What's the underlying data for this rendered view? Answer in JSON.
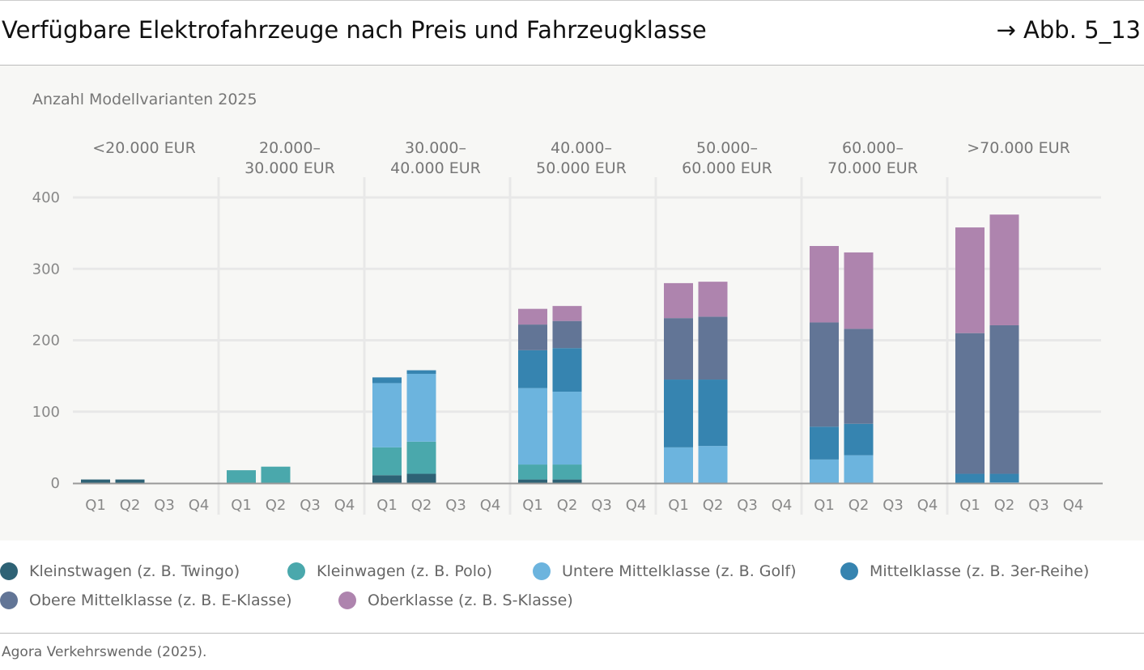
{
  "header": {
    "title": "Verfügbare Elektrofahrzeuge nach Preis und Fahrzeugklasse",
    "figure_ref": "→ Abb. 5_13"
  },
  "source": "Agora Verkehrswende (2025).",
  "chart_data": {
    "type": "bar",
    "stacked": true,
    "ylabel": "Anzahl Modellvarianten 2025",
    "ylim": [
      0,
      400
    ],
    "yticks": [
      0,
      100,
      200,
      300,
      400
    ],
    "grid": true,
    "legend_position": "bottom",
    "groups": [
      [
        "<20.000 EUR"
      ],
      [
        "20.000–",
        "30.000 EUR"
      ],
      [
        "30.000–",
        "40.000 EUR"
      ],
      [
        "40.000–",
        "50.000 EUR"
      ],
      [
        "50.000–",
        "60.000 EUR"
      ],
      [
        "60.000–",
        "70.000 EUR"
      ],
      [
        ">70.000 EUR"
      ]
    ],
    "categories": [
      "Q1",
      "Q2",
      "Q3",
      "Q4"
    ],
    "series": [
      {
        "name": "Kleinstwagen (z. B. Twingo)",
        "color": "#2e6275",
        "values": [
          [
            5,
            5,
            0,
            0
          ],
          [
            0,
            0,
            0,
            0
          ],
          [
            11,
            13,
            0,
            0
          ],
          [
            5,
            5,
            0,
            0
          ],
          [
            0,
            0,
            0,
            0
          ],
          [
            0,
            0,
            0,
            0
          ],
          [
            0,
            0,
            0,
            0
          ]
        ]
      },
      {
        "name": "Kleinwagen (z. B. Polo)",
        "color": "#4aa8ac",
        "values": [
          [
            0,
            0,
            0,
            0
          ],
          [
            18,
            23,
            0,
            0
          ],
          [
            39,
            45,
            0,
            0
          ],
          [
            21,
            21,
            0,
            0
          ],
          [
            0,
            0,
            0,
            0
          ],
          [
            0,
            0,
            0,
            0
          ],
          [
            0,
            0,
            0,
            0
          ]
        ]
      },
      {
        "name": "Untere Mittelklasse (z. B. Golf)",
        "color": "#6cb4de",
        "values": [
          [
            0,
            0,
            0,
            0
          ],
          [
            0,
            0,
            0,
            0
          ],
          [
            90,
            95,
            0,
            0
          ],
          [
            107,
            102,
            0,
            0
          ],
          [
            50,
            52,
            0,
            0
          ],
          [
            33,
            39,
            0,
            0
          ],
          [
            0,
            1,
            0,
            0
          ]
        ]
      },
      {
        "name": "Mittelklasse (z. B. 3er-Reihe)",
        "color": "#3684b0",
        "values": [
          [
            0,
            0,
            0,
            0
          ],
          [
            0,
            0,
            0,
            0
          ],
          [
            8,
            5,
            0,
            0
          ],
          [
            53,
            61,
            0,
            0
          ],
          [
            95,
            93,
            0,
            0
          ],
          [
            46,
            44,
            0,
            0
          ],
          [
            13,
            12,
            0,
            0
          ]
        ]
      },
      {
        "name": "Obere Mittelklasse (z. B. E-Klasse)",
        "color": "#627596",
        "values": [
          [
            0,
            0,
            0,
            0
          ],
          [
            0,
            0,
            0,
            0
          ],
          [
            0,
            0,
            0,
            0
          ],
          [
            36,
            38,
            0,
            0
          ],
          [
            86,
            88,
            0,
            0
          ],
          [
            146,
            133,
            0,
            0
          ],
          [
            197,
            208,
            0,
            0
          ]
        ]
      },
      {
        "name": "Oberklasse (z. B. S-Klasse)",
        "color": "#ae84ae",
        "values": [
          [
            0,
            0,
            0,
            0
          ],
          [
            0,
            0,
            0,
            0
          ],
          [
            0,
            0,
            0,
            0
          ],
          [
            22,
            21,
            0,
            0
          ],
          [
            49,
            49,
            0,
            0
          ],
          [
            107,
            107,
            0,
            0
          ],
          [
            148,
            155,
            0,
            0
          ]
        ]
      }
    ]
  }
}
